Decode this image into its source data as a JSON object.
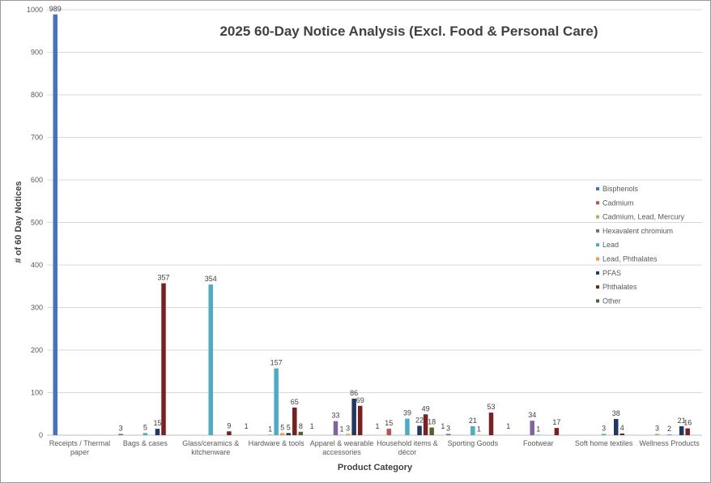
{
  "chart_data": {
    "type": "bar",
    "title": "2025 60-Day Notice Analysis (Excl. Food & Personal Care)",
    "xlabel": "Product Category",
    "ylabel": "# of 60 Day Notices",
    "ylim": [
      0,
      1000
    ],
    "yticks": [
      0,
      100,
      200,
      300,
      400,
      500,
      600,
      700,
      800,
      900,
      1000
    ],
    "grid": true,
    "legend_position": "right",
    "categories": [
      [
        "Receipts / Thermal",
        "paper"
      ],
      [
        "Bags & cases"
      ],
      [
        "Glass/ceramics &",
        "kitchenware"
      ],
      [
        "Hardware & tools"
      ],
      [
        "Apparel & wearable",
        "accessories"
      ],
      [
        "Household items &",
        "décor"
      ],
      [
        "Sporting Goods"
      ],
      [
        "Footwear"
      ],
      [
        "Soft home textiles"
      ],
      [
        "Wellness Products"
      ]
    ],
    "series": [
      {
        "name": "Bisphenols",
        "color": "#4472C4",
        "values": [
          989,
          3,
          null,
          null,
          null,
          null,
          3,
          null,
          null,
          null
        ]
      },
      {
        "name": "Cadmium",
        "color": "#C0504D",
        "values": [
          null,
          null,
          null,
          null,
          null,
          15,
          null,
          null,
          null,
          null
        ]
      },
      {
        "name": "Cadmium, Lead, Mercury",
        "color": "#9BBB59",
        "values": [
          null,
          null,
          null,
          null,
          null,
          null,
          null,
          null,
          null,
          3
        ]
      },
      {
        "name": "Hexavalent chromium",
        "color": "#8064A2",
        "values": [
          null,
          null,
          null,
          1,
          33,
          null,
          null,
          34,
          null,
          null
        ]
      },
      {
        "name": "Lead",
        "color": "#4BACC6",
        "values": [
          null,
          5,
          354,
          157,
          1,
          39,
          21,
          1,
          3,
          2
        ]
      },
      {
        "name": "Lead, Phthalates",
        "color": "#F79646",
        "values": [
          null,
          null,
          null,
          5,
          3,
          null,
          1,
          null,
          null,
          null
        ]
      },
      {
        "name": "PFAS",
        "color": "#1F3864",
        "values": [
          null,
          15,
          null,
          5,
          86,
          22,
          null,
          null,
          38,
          21
        ]
      },
      {
        "name": "Phthalates",
        "color": "#7B2020",
        "values": [
          null,
          357,
          9,
          65,
          69,
          49,
          53,
          17,
          4,
          16
        ]
      },
      {
        "name": "Other",
        "color": "#4F6228",
        "values": [
          null,
          null,
          null,
          8,
          null,
          18,
          null,
          null,
          null,
          null
        ]
      }
    ],
    "extra_labels": [
      {
        "category": 3,
        "text": "1"
      },
      {
        "category": 4,
        "text": "1"
      },
      {
        "category": 5,
        "text": "1"
      },
      {
        "category": 6,
        "text": "1"
      },
      {
        "category": 7,
        "text": "1"
      }
    ]
  }
}
